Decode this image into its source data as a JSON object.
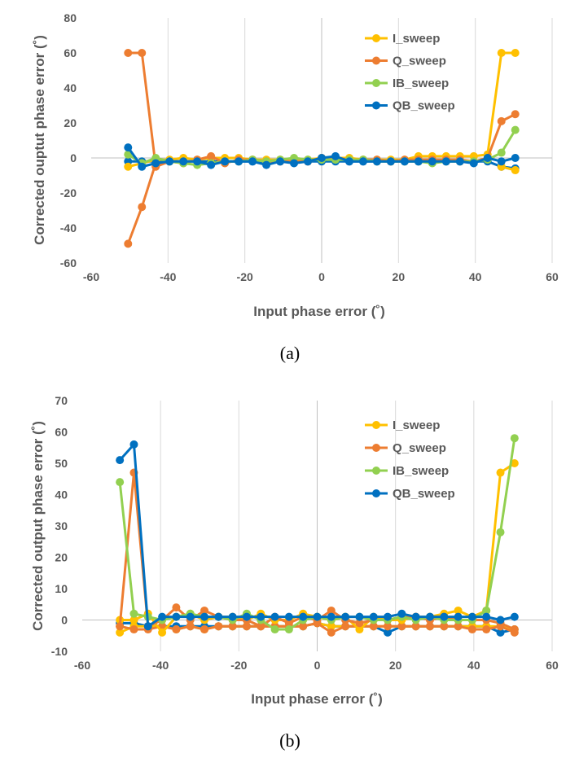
{
  "chart_data": [
    {
      "type": "line",
      "caption": "(a)",
      "xlabel": "Input phase error (˚)",
      "ylabel": "Corrected ouptut phase error (˚)",
      "xlim": [
        -60,
        60
      ],
      "ylim": [
        -60,
        80
      ],
      "xticks": [
        -60,
        -40,
        -20,
        0,
        20,
        40,
        60
      ],
      "yticks": [
        -60,
        -40,
        -20,
        0,
        20,
        40,
        60,
        80
      ],
      "grid": "vertical",
      "legend_position": "top-right",
      "x": [
        -50.4,
        -46.8,
        -43.2,
        -39.6,
        -36,
        -32.4,
        -28.8,
        -25.2,
        -21.6,
        -18,
        -14.4,
        -10.8,
        -7.2,
        -3.6,
        0,
        3.6,
        7.2,
        10.8,
        14.4,
        18,
        21.6,
        25.2,
        28.8,
        32.4,
        36,
        39.6,
        43.2,
        46.8,
        50.4
      ],
      "series": [
        {
          "name": "I_sweep",
          "color": "#FFC000",
          "values": [
            -5,
            -3,
            -1,
            -1,
            0,
            -1,
            0,
            0,
            0,
            -1,
            -1,
            -1,
            -1,
            -1,
            0,
            0,
            0,
            -1,
            -1,
            -1,
            -1,
            1,
            1,
            1,
            1,
            1,
            2,
            60,
            60
          ]
        },
        {
          "name": "Q_sweep",
          "color": "#ED7D31",
          "values": [
            60,
            60,
            -5,
            -2,
            -3,
            -1,
            1,
            -3,
            -1,
            -1,
            -2,
            -2,
            -2,
            -2,
            0,
            0,
            -1,
            -1,
            -1,
            -2,
            -1,
            -1,
            -1,
            -1,
            -1,
            -2,
            0,
            21,
            25
          ]
        },
        {
          "name": "IB_sweep",
          "color": "#92D050",
          "values": [
            2,
            -3,
            0,
            -2,
            -3,
            -4,
            -3,
            -2,
            -2,
            -1,
            -2,
            -1,
            0,
            -1,
            -1,
            -1,
            -1,
            -1,
            -2,
            -2,
            -2,
            -2,
            -3,
            -2,
            -2,
            -2,
            -1,
            3,
            16
          ]
        },
        {
          "name": "QB_sweep",
          "color": "#0070C0",
          "values": [
            6,
            -5,
            -3,
            -2,
            -2,
            -2,
            -4,
            -2,
            -2,
            -2,
            -4,
            -2,
            -3,
            -2,
            0,
            1,
            -2,
            -2,
            -2,
            -2,
            -2,
            -2,
            -2,
            -2,
            -2,
            -3,
            0,
            -2,
            0
          ]
        }
      ],
      "extra_points": [
        {
          "series": "Q_sweep",
          "x": [
            -50.4,
            -46.8,
            -43.2
          ],
          "values": [
            -49,
            -28,
            -3
          ]
        },
        {
          "series": "QB_sweep",
          "x": [
            -50.4,
            -46.8,
            -43.2,
            -39.6,
            -36,
            -32.4,
            -28.8,
            -25.2,
            -21.6,
            -18,
            -14.4,
            -10.8,
            -7.2,
            -3.6,
            0,
            3.6,
            7.2,
            10.8,
            14.4,
            18,
            21.6,
            25.2,
            28.8,
            32.4,
            36,
            39.6,
            43.2,
            46.8,
            50.4
          ],
          "values": [
            -2,
            -2,
            -2,
            -2,
            -2,
            -2,
            -2,
            -2,
            -2,
            -2,
            -2,
            -2,
            -2,
            -2,
            -2,
            -2,
            -2,
            -2,
            -2,
            -2,
            -2,
            -2,
            -2,
            -2,
            -2,
            -2,
            -2,
            -5,
            -6
          ]
        },
        {
          "series": "I_sweep",
          "x": [
            46.8,
            50.4
          ],
          "values": [
            -5,
            -7
          ]
        }
      ]
    },
    {
      "type": "line",
      "caption": "(b)",
      "xlabel": "Input phase error (˚)",
      "ylabel": "Corrected output phase error (˚)",
      "xlim": [
        -60,
        60
      ],
      "ylim": [
        -10,
        70
      ],
      "xticks": [
        -60,
        -40,
        -20,
        0,
        20,
        40,
        60
      ],
      "yticks": [
        -10,
        0,
        10,
        20,
        30,
        40,
        50,
        60,
        70
      ],
      "grid": "vertical",
      "legend_position": "top-right",
      "x": [
        -50.4,
        -46.8,
        -43.2,
        -39.6,
        -36,
        -32.4,
        -28.8,
        -25.2,
        -21.6,
        -18,
        -14.4,
        -10.8,
        -7.2,
        -3.6,
        0,
        3.6,
        7.2,
        10.8,
        14.4,
        18,
        21.6,
        25.2,
        28.8,
        32.4,
        36,
        39.6,
        43.2,
        46.8,
        50.4
      ],
      "series": [
        {
          "name": "I_sweep",
          "color": "#FFC000",
          "values": [
            0,
            0,
            2,
            -4,
            1,
            2,
            0,
            1,
            1,
            0,
            2,
            0,
            0,
            2,
            1,
            0,
            1,
            -3,
            1,
            0,
            0,
            1,
            1,
            2,
            3,
            1,
            3,
            47,
            50
          ]
        },
        {
          "name": "Q_sweep",
          "color": "#ED7D31",
          "values": [
            -2,
            47,
            -2,
            0,
            4,
            0,
            3,
            1,
            0,
            0,
            -2,
            1,
            -1,
            1,
            0,
            3,
            0,
            -1,
            0,
            0,
            1,
            1,
            0,
            1,
            0,
            0,
            0,
            -1,
            -3
          ]
        },
        {
          "name": "IB_sweep",
          "color": "#92D050",
          "values": [
            44,
            2,
            1,
            0,
            1,
            2,
            1,
            1,
            0,
            2,
            0,
            -3,
            -3,
            0,
            1,
            0,
            1,
            1,
            0,
            0,
            1,
            0,
            1,
            0,
            0,
            0,
            3,
            28,
            58
          ]
        },
        {
          "name": "QB_sweep",
          "color": "#0070C0",
          "values": [
            51,
            56,
            -2,
            1,
            1,
            1,
            1,
            1,
            1,
            1,
            1,
            1,
            1,
            1,
            1,
            1,
            1,
            1,
            1,
            1,
            2,
            1,
            1,
            1,
            1,
            1,
            1,
            0,
            1
          ]
        }
      ],
      "extra_points": [
        {
          "series": "QB_sweep",
          "x": [
            -50.4,
            -46.8,
            -43.2,
            -39.6,
            -36,
            -32.4,
            -28.8,
            -25.2,
            -21.6,
            -18,
            -14.4,
            -10.8,
            -7.2,
            -3.6,
            0,
            3.6,
            7.2,
            10.8,
            14.4,
            18,
            21.6,
            25.2,
            28.8,
            32.4,
            36,
            39.6,
            43.2,
            46.8,
            50.4
          ],
          "values": [
            -1,
            -1,
            -2,
            -2,
            -2,
            -2,
            -2,
            -2,
            -2,
            -2,
            -2,
            -2,
            -2,
            -2,
            -1,
            -2,
            -2,
            -2,
            -2,
            -4,
            -2,
            -2,
            -2,
            -2,
            -2,
            -2,
            -2,
            -4,
            -3
          ]
        },
        {
          "series": "I_sweep",
          "x": [
            -50.4,
            -46.8,
            -43.2,
            -39.6,
            -36,
            -32.4,
            -28.8,
            -25.2,
            -21.6,
            -18,
            -14.4,
            -10.8,
            -7.2,
            -3.6,
            0,
            3.6,
            7.2,
            10.8,
            14.4,
            18,
            21.6,
            25.2,
            28.8,
            32.4,
            36,
            39.6,
            43.2,
            46.8,
            50.4
          ],
          "values": [
            -4,
            -2,
            -2,
            -2,
            -3,
            -2,
            -3,
            -2,
            -2,
            -2,
            -2,
            -2,
            -2,
            -2,
            -1,
            -2,
            -2,
            -2,
            -2,
            -2,
            -2,
            -2,
            -2,
            -2,
            -2,
            -2,
            -2,
            -2,
            -3
          ]
        },
        {
          "series": "Q_sweep",
          "x": [
            -50.4,
            -46.8,
            -43.2,
            -39.6,
            -36,
            -32.4,
            -28.8,
            -25.2,
            -21.6,
            -18,
            -14.4,
            -10.8,
            -7.2,
            -3.6,
            0,
            3.6,
            7.2,
            10.8,
            14.4,
            18,
            21.6,
            25.2,
            28.8,
            32.4,
            36,
            39.6,
            43.2,
            46.8,
            50.4
          ],
          "values": [
            -2,
            -3,
            -3,
            -2,
            -3,
            -2,
            -3,
            -2,
            -2,
            -2,
            -2,
            -2,
            -2,
            -2,
            -1,
            -4,
            -2,
            -2,
            -2,
            -2,
            -2,
            -2,
            -2,
            -2,
            -2,
            -3,
            -3,
            -2,
            -4
          ]
        }
      ]
    }
  ]
}
